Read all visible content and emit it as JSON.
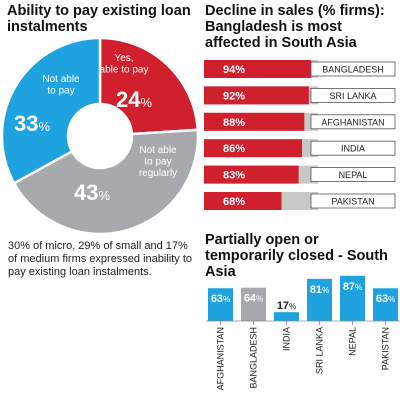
{
  "colors": {
    "red": "#d0202e",
    "gray": "#a7a9ac",
    "blue": "#1fa3e0",
    "light_gray": "#c8c8c8"
  },
  "chart_data": [
    {
      "type": "pie",
      "title": "Ability to pay existing loan instalments",
      "slices": [
        {
          "label": "Yes, able to pay",
          "value": 24,
          "value_text": "24",
          "unit": "%",
          "color": "#d0202e"
        },
        {
          "label": "Not able to pay regularly",
          "value": 43,
          "value_text": "43",
          "unit": "%",
          "color": "#a7a9ac"
        },
        {
          "label": "Not able to pay",
          "value": 33,
          "value_text": "33",
          "unit": "%",
          "color": "#1fa3e0"
        }
      ],
      "donut": true,
      "caption": "30% of micro, 29% of small and 17% of medium firms expressed inability to pay existing loan instalments."
    },
    {
      "type": "bar",
      "orientation": "horizontal",
      "title": "Decline in sales (% firms): Bangladesh is most affected in South Asia",
      "categories": [
        "BANGLADESH",
        "SRI LANKA",
        "AFGHANISTAN",
        "INDIA",
        "NEPAL",
        "PAKISTAN"
      ],
      "values": [
        94,
        92,
        88,
        86,
        83,
        68
      ],
      "value_labels": [
        "94%",
        "92%",
        "88%",
        "86%",
        "83%",
        "68%"
      ],
      "xlim": [
        0,
        100
      ],
      "color": "#d0202e"
    },
    {
      "type": "bar",
      "orientation": "vertical",
      "title": "Partially open or temporarily closed - South Asia",
      "categories": [
        "AFGHANISTAN",
        "BANGLADESH",
        "INDIA",
        "SRI LANKA",
        "NEPAL",
        "PAKISTAN"
      ],
      "values": [
        63,
        64,
        17,
        81,
        87,
        63
      ],
      "value_labels": [
        "63%",
        "64%",
        "17%",
        "81%",
        "87%",
        "63%"
      ],
      "colors": [
        "#1fa3e0",
        "#a7a9ac",
        "#1fa3e0",
        "#1fa3e0",
        "#1fa3e0",
        "#1fa3e0"
      ],
      "ylim": [
        0,
        100
      ]
    }
  ]
}
